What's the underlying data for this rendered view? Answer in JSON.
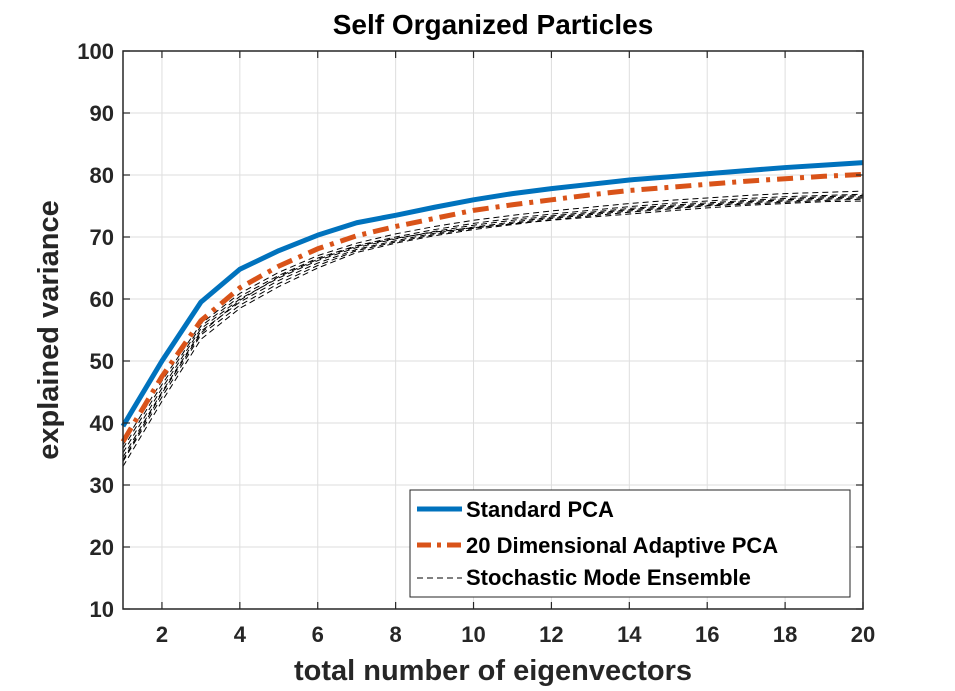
{
  "chart_data": {
    "type": "line",
    "title": "Self Organized Particles",
    "xlabel": "total number of eigenvectors",
    "ylabel": "explained variance",
    "xlim": [
      1,
      20
    ],
    "ylim": [
      10,
      100
    ],
    "xticks": [
      2,
      4,
      6,
      8,
      10,
      12,
      14,
      16,
      18,
      20
    ],
    "yticks": [
      10,
      20,
      30,
      40,
      50,
      60,
      70,
      80,
      90,
      100
    ],
    "grid": true,
    "legend_position": "bottom-right",
    "x": [
      1,
      2,
      3,
      4,
      5,
      6,
      7,
      8,
      9,
      10,
      11,
      12,
      13,
      14,
      15,
      16,
      17,
      18,
      19,
      20
    ],
    "series": [
      {
        "name": "Standard PCA",
        "color": "#0072BD",
        "style": "solid",
        "values": [
          39.5,
          50.0,
          59.5,
          64.8,
          67.8,
          70.3,
          72.3,
          73.5,
          74.8,
          76.0,
          77.0,
          77.8,
          78.5,
          79.2,
          79.7,
          80.2,
          80.7,
          81.2,
          81.6,
          82.0
        ]
      },
      {
        "name": "20 Dimensional Adaptive PCA",
        "color": "#D95319",
        "style": "dashdot",
        "values": [
          37.0,
          47.5,
          56.5,
          61.8,
          65.3,
          68.1,
          70.2,
          71.7,
          73.0,
          74.3,
          75.2,
          76.0,
          76.8,
          77.5,
          78.0,
          78.5,
          79.0,
          79.4,
          79.8,
          80.1
        ]
      },
      {
        "name": "Stochastic Mode Ensemble",
        "color": "#000000",
        "style": "dashed",
        "ensemble": [
          [
            33.0,
            43.5,
            53.5,
            58.5,
            62.0,
            65.0,
            67.5,
            69.0,
            70.2,
            71.2,
            72.0,
            72.8,
            73.4,
            74.0,
            74.5,
            75.0,
            75.3,
            75.6,
            75.9,
            76.1
          ],
          [
            33.8,
            44.2,
            54.2,
            59.0,
            62.5,
            65.4,
            67.8,
            69.2,
            70.4,
            71.4,
            72.2,
            73.0,
            73.6,
            74.2,
            74.7,
            75.1,
            75.5,
            75.8,
            76.1,
            76.3
          ],
          [
            34.5,
            45.0,
            54.8,
            59.5,
            63.0,
            65.8,
            68.0,
            69.4,
            70.6,
            71.6,
            72.4,
            73.2,
            73.8,
            74.4,
            74.9,
            75.3,
            75.7,
            76.0,
            76.3,
            76.5
          ],
          [
            35.2,
            45.6,
            55.2,
            60.0,
            63.4,
            66.2,
            68.3,
            69.7,
            70.9,
            71.9,
            72.7,
            73.4,
            74.0,
            74.6,
            75.1,
            75.5,
            75.9,
            76.2,
            76.5,
            76.7
          ],
          [
            35.9,
            46.2,
            55.6,
            60.4,
            63.8,
            66.6,
            68.6,
            70.0,
            71.2,
            72.2,
            73.0,
            73.7,
            74.3,
            74.9,
            75.4,
            75.8,
            76.2,
            76.5,
            76.7,
            76.9
          ],
          [
            36.5,
            46.8,
            56.0,
            60.9,
            64.3,
            67.0,
            69.0,
            70.5,
            71.7,
            72.7,
            73.5,
            74.2,
            74.8,
            75.4,
            75.9,
            76.3,
            76.7,
            77.0,
            77.2,
            77.4
          ],
          [
            34.0,
            44.8,
            54.5,
            59.8,
            63.6,
            66.4,
            68.5,
            69.8,
            70.8,
            71.5,
            72.1,
            72.7,
            73.2,
            73.7,
            74.2,
            74.7,
            75.1,
            75.4,
            75.7,
            75.8
          ]
        ]
      }
    ]
  }
}
